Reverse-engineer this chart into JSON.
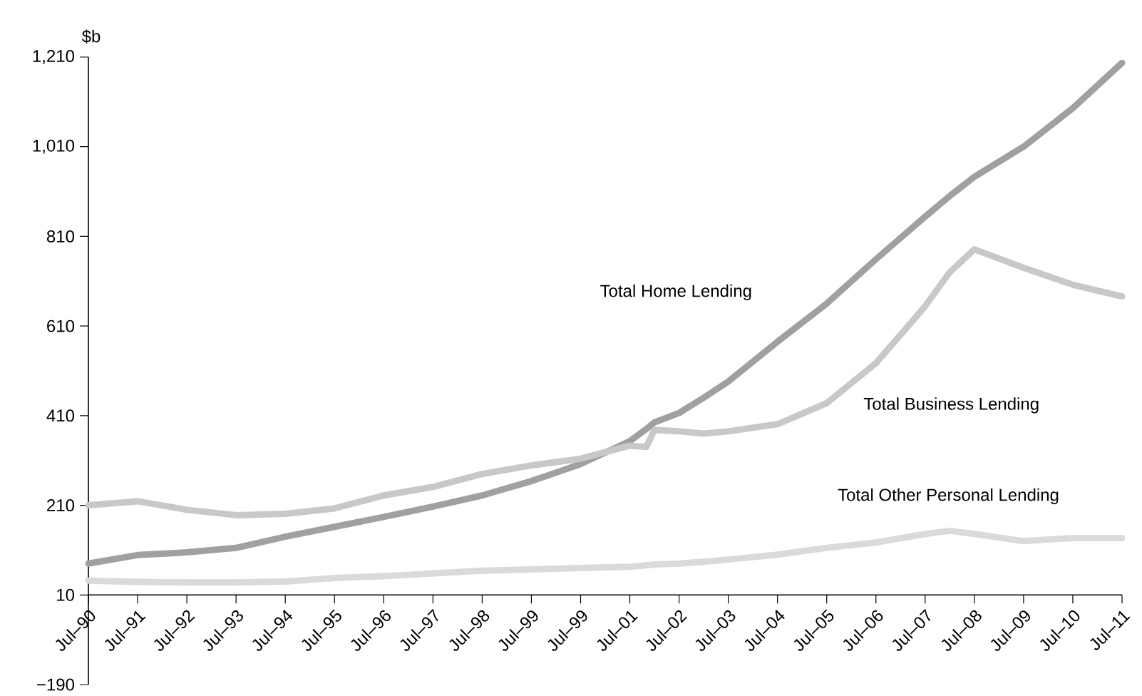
{
  "chart_data": {
    "type": "line",
    "ylabel": "$b",
    "x": [
      "1990-07",
      "1991-07",
      "1992-07",
      "1993-07",
      "1994-07",
      "1995-07",
      "1996-07",
      "1997-07",
      "1998-07",
      "1999-07",
      "2000-07",
      "2001-07",
      "2001-11",
      "2002-01",
      "2002-07",
      "2003-01",
      "2003-07",
      "2004-07",
      "2005-07",
      "2006-07",
      "2007-07",
      "2008-01",
      "2008-07",
      "2009-07",
      "2010-07",
      "2011-07"
    ],
    "series": [
      {
        "name": "Total Home Lending",
        "color": "#a0a0a0",
        "values": [
          80,
          99,
          105,
          115,
          140,
          162,
          184,
          207,
          232,
          264,
          302,
          353,
          380,
          395,
          416,
          450,
          486,
          575,
          660,
          759,
          854,
          900,
          943,
          1010,
          1096,
          1197
        ]
      },
      {
        "name": "Total Business Lending",
        "color": "#c8c8c8",
        "values": [
          210,
          219,
          200,
          188,
          191,
          203,
          232,
          251,
          280,
          299,
          314,
          343,
          340,
          378,
          375,
          370,
          375,
          391,
          438,
          527,
          654,
          730,
          781,
          740,
          702,
          676
        ]
      },
      {
        "name": "Total Other Personal Lending",
        "color": "#dadada",
        "values": [
          42,
          39,
          38,
          38,
          40,
          48,
          52,
          58,
          64,
          67,
          70,
          73,
          76,
          78,
          80,
          84,
          89,
          100,
          115,
          127,
          146,
          153,
          146,
          130,
          137,
          137
        ]
      }
    ],
    "xlim": [
      "1990-07",
      "2011-07"
    ],
    "xticks": [
      {
        "value": "1990-07",
        "label": "Jul–90"
      },
      {
        "value": "1991-07",
        "label": "Jul–91"
      },
      {
        "value": "1992-07",
        "label": "Jul–92"
      },
      {
        "value": "1993-07",
        "label": "Jul–93"
      },
      {
        "value": "1994-07",
        "label": "Jul–94"
      },
      {
        "value": "1995-07",
        "label": "Jul–95"
      },
      {
        "value": "1996-07",
        "label": "Jul–96"
      },
      {
        "value": "1997-07",
        "label": "Jul–97"
      },
      {
        "value": "1998-07",
        "label": "Jul–98"
      },
      {
        "value": "1999-07",
        "label": "Jul–99"
      },
      {
        "value": "2000-07",
        "label": "Jul–99"
      },
      {
        "value": "2001-07",
        "label": "Jul–01"
      },
      {
        "value": "2002-07",
        "label": "Jul–02"
      },
      {
        "value": "2003-07",
        "label": "Jul–03"
      },
      {
        "value": "2004-07",
        "label": "Jul–04"
      },
      {
        "value": "2005-07",
        "label": "Jul–05"
      },
      {
        "value": "2006-07",
        "label": "Jul–06"
      },
      {
        "value": "2007-07",
        "label": "Jul–07"
      },
      {
        "value": "2008-07",
        "label": "Jul–08"
      },
      {
        "value": "2009-07",
        "label": "Jul–09"
      },
      {
        "value": "2010-07",
        "label": "Jul–10"
      },
      {
        "value": "2011-07",
        "label": "Jul–11"
      }
    ],
    "ylim": [
      -190,
      1210
    ],
    "yticks": [
      {
        "value": -190,
        "label": "−190"
      },
      10,
      210,
      410,
      610,
      810,
      {
        "value": 1010,
        "label": "1,010"
      },
      {
        "value": 1210,
        "label": "1,210"
      }
    ],
    "line_style": "solid",
    "marker": "none"
  }
}
